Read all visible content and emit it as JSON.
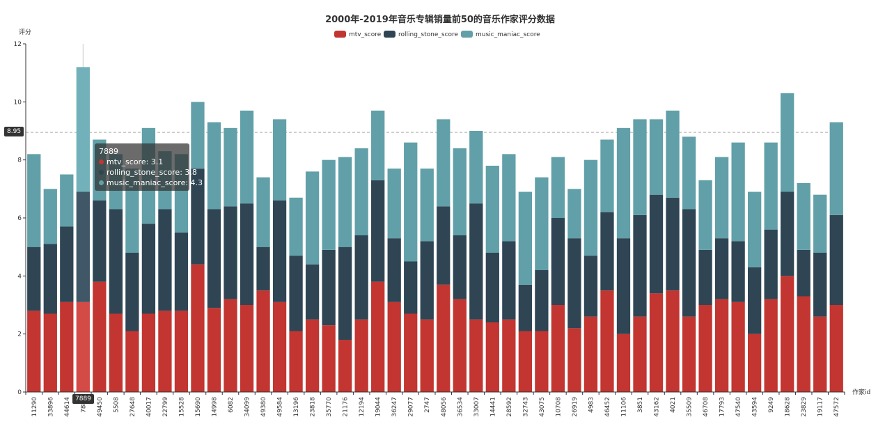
{
  "chart_data": {
    "type": "bar",
    "stacked": true,
    "title": "2000年-2019年音乐专辑销量前50的音乐作家评分数据",
    "ylabel": "评分",
    "xlabel": "作家id",
    "ylim": [
      0,
      12
    ],
    "yticks": [
      0,
      2,
      4,
      6,
      8,
      10,
      12
    ],
    "legend_position": "top-center",
    "categories": [
      "11290",
      "33896",
      "44614",
      "7889",
      "49450",
      "5508",
      "27648",
      "40017",
      "22799",
      "15528",
      "15690",
      "14998",
      "6082",
      "34099",
      "49380",
      "49584",
      "13196",
      "23818",
      "35770",
      "21176",
      "12194",
      "19044",
      "36247",
      "29077",
      "2747",
      "48056",
      "36534",
      "33007",
      "14441",
      "28592",
      "32743",
      "43075",
      "10708",
      "26919",
      "4983",
      "46452",
      "11106",
      "3851",
      "43162",
      "4021",
      "35509",
      "46708",
      "17793",
      "47540",
      "43594",
      "9249",
      "18628",
      "23829",
      "19117",
      "47572"
    ],
    "series": [
      {
        "name": "mtv_score",
        "color": "#c23531",
        "values": [
          2.8,
          2.7,
          3.1,
          3.1,
          3.8,
          2.7,
          2.1,
          2.7,
          2.8,
          2.8,
          4.4,
          2.9,
          3.2,
          3.0,
          3.5,
          3.1,
          2.1,
          2.5,
          2.3,
          1.8,
          2.5,
          3.8,
          3.1,
          2.7,
          2.5,
          3.7,
          3.2,
          2.5,
          2.4,
          2.5,
          2.1,
          2.1,
          3.0,
          2.2,
          2.6,
          3.5,
          2.0,
          2.6,
          3.4,
          3.5,
          2.6,
          3.0,
          3.2,
          3.1,
          2.0,
          3.2,
          4.0,
          3.3,
          2.6,
          3.0
        ]
      },
      {
        "name": "rolling_stone_score",
        "color": "#2f4554",
        "values": [
          2.2,
          2.4,
          2.6,
          3.8,
          2.8,
          3.6,
          2.7,
          3.1,
          3.5,
          2.7,
          3.3,
          3.4,
          3.2,
          3.5,
          1.5,
          3.5,
          2.6,
          1.9,
          2.6,
          3.2,
          2.9,
          3.5,
          2.2,
          1.8,
          2.7,
          2.7,
          2.2,
          4.0,
          2.4,
          2.7,
          1.6,
          2.1,
          3.0,
          3.1,
          2.1,
          2.7,
          3.3,
          3.5,
          3.4,
          3.2,
          3.7,
          1.9,
          2.1,
          2.1,
          2.3,
          2.4,
          2.9,
          1.6,
          2.2,
          3.1
        ]
      },
      {
        "name": "music_maniac_score",
        "color": "#61a0a8",
        "values": [
          3.2,
          1.9,
          1.8,
          4.3,
          2.1,
          1.9,
          2.9,
          3.3,
          2.0,
          2.7,
          2.3,
          3.0,
          2.7,
          3.2,
          2.4,
          2.8,
          2.0,
          3.2,
          3.1,
          3.1,
          3.0,
          2.4,
          2.4,
          4.1,
          2.5,
          3.0,
          3.0,
          2.5,
          3.0,
          3.0,
          3.2,
          3.2,
          2.1,
          1.7,
          3.3,
          2.5,
          3.8,
          3.3,
          2.6,
          3.0,
          2.5,
          2.4,
          2.8,
          3.4,
          2.6,
          3.0,
          3.4,
          2.3,
          2.0,
          3.2
        ]
      }
    ],
    "highlight_index": 3,
    "cursor_y_value": 8.95
  },
  "tooltip": {
    "title": "7889",
    "rows": [
      {
        "text": "mtv_score: 3.1",
        "color": "#c23531"
      },
      {
        "text": "rolling_stone_score: 3.8",
        "color": "#2f4554"
      },
      {
        "text": "music_maniac_score: 4.3",
        "color": "#61a0a8"
      }
    ]
  },
  "pointer": {
    "y_label": "8.95",
    "x_label": "7889"
  }
}
